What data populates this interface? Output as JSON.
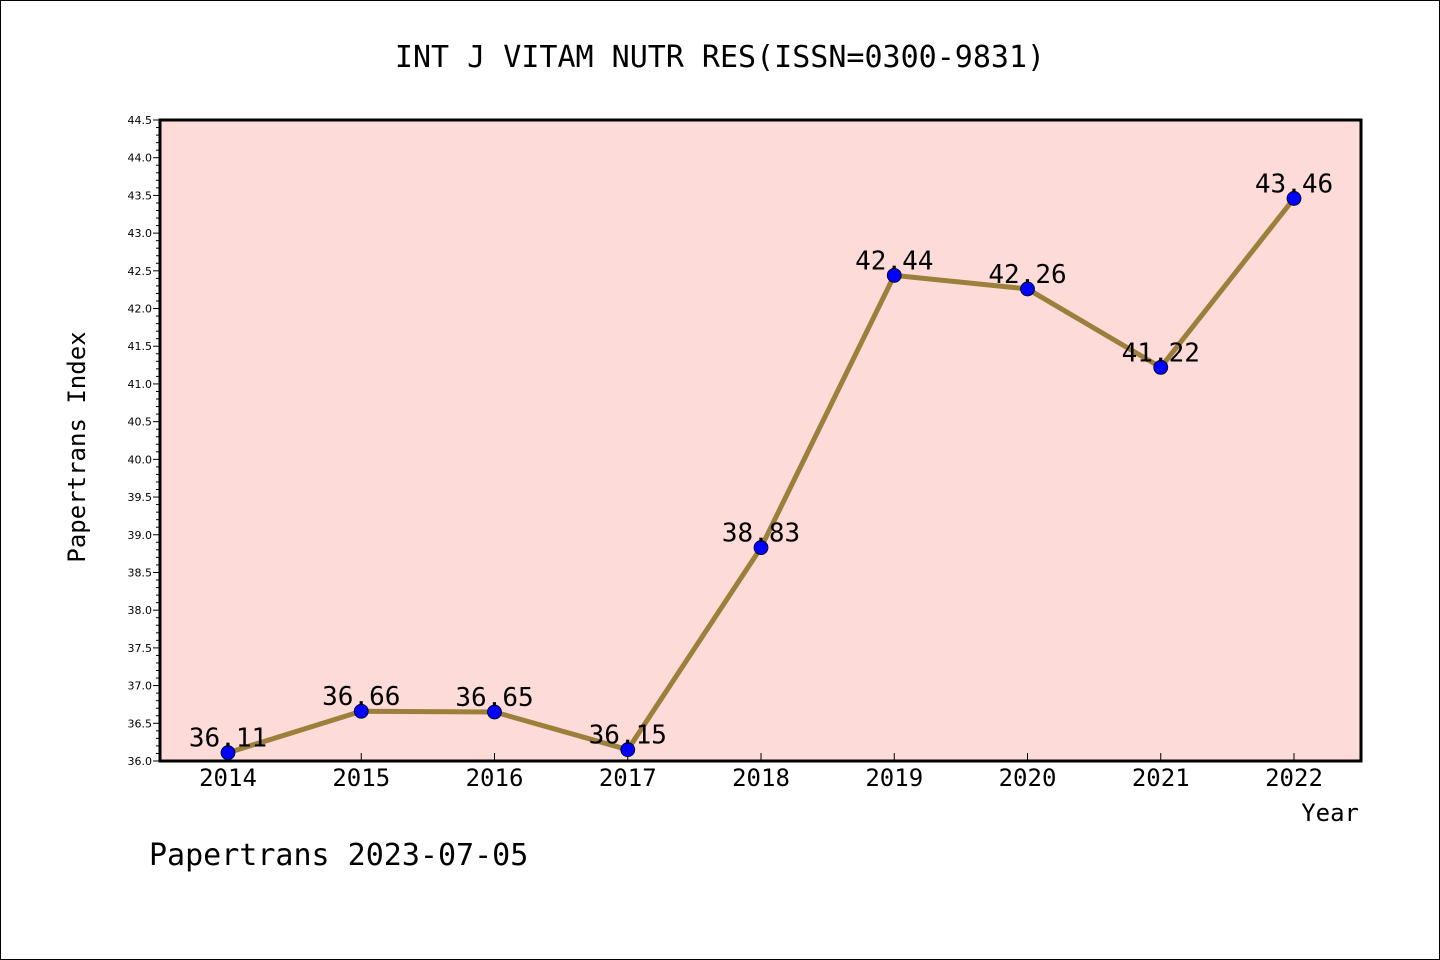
{
  "chart_data": {
    "type": "line",
    "title": "INT J VITAM NUTR RES(ISSN=0300-9831)",
    "xlabel": "Year",
    "ylabel": "Papertrans Index",
    "categories": [
      "2014",
      "2015",
      "2016",
      "2017",
      "2018",
      "2019",
      "2020",
      "2021",
      "2022"
    ],
    "series": [
      {
        "values": [
          36.11,
          36.66,
          36.65,
          36.15,
          38.83,
          42.44,
          42.26,
          41.22,
          43.46
        ]
      }
    ],
    "data_labels": [
      "36.11",
      "36.66",
      "36.65",
      "36.15",
      "38.83",
      "42.44",
      "42.26",
      "41.22",
      "43.46"
    ],
    "ylim": [
      36.0,
      44.5
    ],
    "ytick_labels": [
      "36.0",
      "36.5",
      "37.0",
      "37.5",
      "38.0",
      "38.5",
      "39.0",
      "39.5",
      "40.0",
      "40.5",
      "41.0",
      "41.5",
      "42.0",
      "42.5",
      "43.0",
      "43.5",
      "44.0",
      "44.5"
    ],
    "grid": false,
    "colors": {
      "plot_background": "#fddbd9",
      "line": "#9b7f3a",
      "marker": "#0000ff"
    }
  },
  "footer": "Papertrans 2023-07-05"
}
